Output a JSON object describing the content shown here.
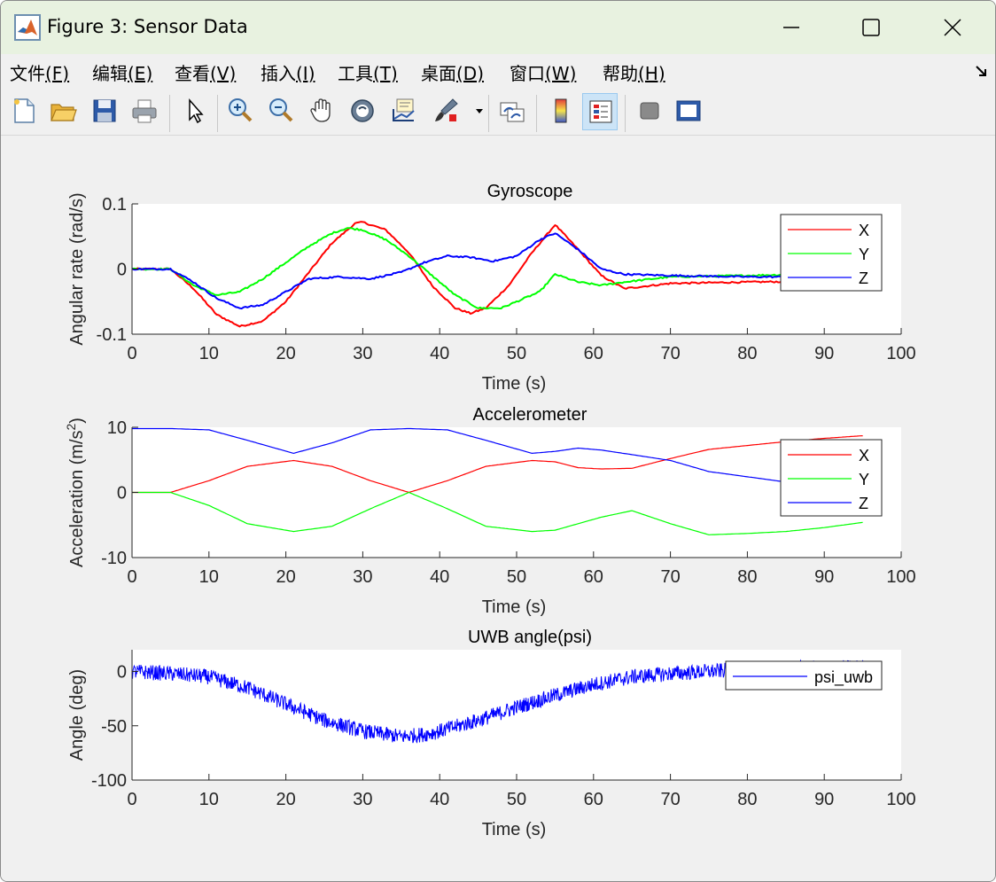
{
  "window": {
    "title": "Figure 3: Sensor Data"
  },
  "menu": [
    {
      "label": "文件",
      "accel": "(F)"
    },
    {
      "label": "编辑",
      "accel": "(E)"
    },
    {
      "label": "查看",
      "accel": "(V)"
    },
    {
      "label": "插入",
      "accel": "(I)"
    },
    {
      "label": "工具",
      "accel": "(T)"
    },
    {
      "label": "桌面",
      "accel": "(D)"
    },
    {
      "label": "窗口",
      "accel": "(W)"
    },
    {
      "label": "帮助",
      "accel": "(H)"
    }
  ],
  "toolbar": {
    "icons": [
      "new-figure-icon",
      "open-file-icon",
      "save-icon",
      "print-icon",
      "edit-plot-arrow-icon",
      "zoom-in-icon",
      "zoom-out-icon",
      "pan-hand-icon",
      "rotate-3d-icon",
      "data-cursor-icon",
      "brush-icon",
      "link-plot-icon",
      "colorbar-icon",
      "legend-icon",
      "hide-plot-tools-icon",
      "show-plot-tools-icon"
    ],
    "active": "legend-icon"
  },
  "colors": {
    "x_series": "#ff0000",
    "y_series": "#00ff00",
    "z_series": "#0000ff",
    "psi_series": "#0000ff",
    "titlebar": "#e8f2e0"
  },
  "chart_data": [
    {
      "type": "line",
      "title": "Gyroscope",
      "xlabel": "Time (s)",
      "ylabel": "Angular rate (rad/s)",
      "xlim": [
        0,
        100
      ],
      "ylim": [
        -0.1,
        0.1
      ],
      "xticks": [
        "0",
        "10",
        "20",
        "30",
        "40",
        "50",
        "60",
        "70",
        "80",
        "90",
        "100"
      ],
      "yticks": [
        "-0.1",
        "0",
        "0.1"
      ],
      "legend_position": "top-right",
      "grid": false,
      "series": [
        {
          "name": "X",
          "color": "#ff0000",
          "x": [
            0,
            5,
            8,
            11,
            14,
            17,
            20,
            23,
            26,
            29,
            30,
            33,
            36,
            39,
            42,
            44,
            46,
            49,
            52,
            55,
            58,
            61,
            64,
            70,
            80,
            95
          ],
          "y": [
            0,
            0,
            -0.03,
            -0.07,
            -0.088,
            -0.08,
            -0.05,
            -0.005,
            0.04,
            0.07,
            0.072,
            0.06,
            0.025,
            -0.025,
            -0.06,
            -0.068,
            -0.06,
            -0.025,
            0.025,
            0.068,
            0.03,
            -0.01,
            -0.03,
            -0.022,
            -0.02,
            -0.018
          ]
        },
        {
          "name": "Y",
          "color": "#00ff00",
          "x": [
            0,
            5,
            8,
            11,
            14,
            17,
            20,
            23,
            26,
            28,
            30,
            33,
            36,
            39,
            42,
            45,
            48,
            51,
            53,
            55,
            58,
            61,
            64,
            70,
            80,
            95
          ],
          "y": [
            0,
            0,
            -0.025,
            -0.04,
            -0.035,
            -0.015,
            0.01,
            0.035,
            0.055,
            0.063,
            0.06,
            0.045,
            0.02,
            -0.01,
            -0.04,
            -0.06,
            -0.06,
            -0.045,
            -0.035,
            -0.008,
            -0.02,
            -0.025,
            -0.02,
            -0.012,
            -0.01,
            -0.006
          ]
        },
        {
          "name": "Z",
          "color": "#0000ff",
          "x": [
            0,
            5,
            8,
            11,
            14,
            17,
            20,
            23,
            27,
            31,
            35,
            38,
            41,
            44,
            47,
            50,
            53,
            55,
            58,
            61,
            64,
            70,
            80,
            95
          ],
          "y": [
            0,
            0,
            -0.02,
            -0.045,
            -0.06,
            -0.055,
            -0.035,
            -0.015,
            -0.012,
            -0.015,
            -0.005,
            0.01,
            0.02,
            0.018,
            0.012,
            0.02,
            0.045,
            0.055,
            0.03,
            0.0,
            -0.008,
            -0.01,
            -0.012,
            -0.012
          ]
        }
      ]
    },
    {
      "type": "line",
      "title": "Accelerometer",
      "xlabel": "Time (s)",
      "ylabel": "Acceleration (m/s",
      "ylabel_sup": "2",
      "ylabel_end": ")",
      "xlim": [
        0,
        100
      ],
      "ylim": [
        -10,
        10
      ],
      "xticks": [
        "0",
        "10",
        "20",
        "30",
        "40",
        "50",
        "60",
        "70",
        "80",
        "90",
        "100"
      ],
      "yticks": [
        "-10",
        "0",
        "10"
      ],
      "legend_position": "top-right",
      "grid": false,
      "series": [
        {
          "name": "X",
          "color": "#ff0000",
          "x": [
            0,
            5,
            10,
            15,
            21,
            26,
            31,
            36,
            41,
            46,
            52,
            55,
            58,
            61,
            65,
            70,
            75,
            80,
            85,
            90,
            95
          ],
          "y": [
            0,
            0,
            1.8,
            4.0,
            4.9,
            4.0,
            1.8,
            0.0,
            1.8,
            4.0,
            4.9,
            4.7,
            3.8,
            3.6,
            3.7,
            5.2,
            6.6,
            7.2,
            7.8,
            8.3,
            8.7
          ]
        },
        {
          "name": "Y",
          "color": "#00ff00",
          "x": [
            0,
            5,
            10,
            15,
            21,
            26,
            31,
            36,
            41,
            46,
            52,
            55,
            58,
            61,
            65,
            70,
            75,
            80,
            85,
            90,
            95
          ],
          "y": [
            0,
            0,
            -2.0,
            -4.8,
            -6.0,
            -5.2,
            -2.5,
            0.0,
            -2.5,
            -5.2,
            -6.0,
            -5.8,
            -4.8,
            -3.8,
            -2.8,
            -4.8,
            -6.5,
            -6.3,
            -6.0,
            -5.4,
            -4.6
          ]
        },
        {
          "name": "Z",
          "color": "#0000ff",
          "x": [
            0,
            5,
            10,
            15,
            21,
            26,
            31,
            36,
            41,
            46,
            52,
            55,
            58,
            61,
            65,
            70,
            75,
            80,
            85,
            90,
            95
          ],
          "y": [
            9.8,
            9.8,
            9.6,
            8.0,
            6.0,
            7.6,
            9.6,
            9.8,
            9.6,
            8.0,
            6.0,
            6.3,
            6.8,
            6.5,
            5.8,
            4.9,
            3.2,
            2.4,
            1.6,
            0.8,
            0.2
          ]
        }
      ]
    },
    {
      "type": "line",
      "title": "UWB angle(psi)",
      "xlabel": "Time (s)",
      "ylabel": "Angle (deg)",
      "xlim": [
        0,
        100
      ],
      "ylim": [
        -100,
        20
      ],
      "xticks": [
        "0",
        "10",
        "20",
        "30",
        "40",
        "50",
        "60",
        "70",
        "80",
        "90",
        "100"
      ],
      "yticks": [
        "-100",
        "-50",
        "0"
      ],
      "legend_position": "top-right",
      "grid": false,
      "series": [
        {
          "name": "psi_uwb",
          "color": "#0000ff",
          "x": [
            0,
            5,
            10,
            15,
            20,
            25,
            30,
            35,
            38,
            40,
            45,
            50,
            55,
            60,
            65,
            70,
            75,
            80,
            85,
            90,
            95
          ],
          "y": [
            0,
            -2,
            -5,
            -15,
            -30,
            -45,
            -55,
            -60,
            -58,
            -55,
            -45,
            -33,
            -22,
            -12,
            -5,
            -2,
            0,
            2,
            3,
            3,
            4
          ],
          "noise": 7
        }
      ]
    }
  ]
}
